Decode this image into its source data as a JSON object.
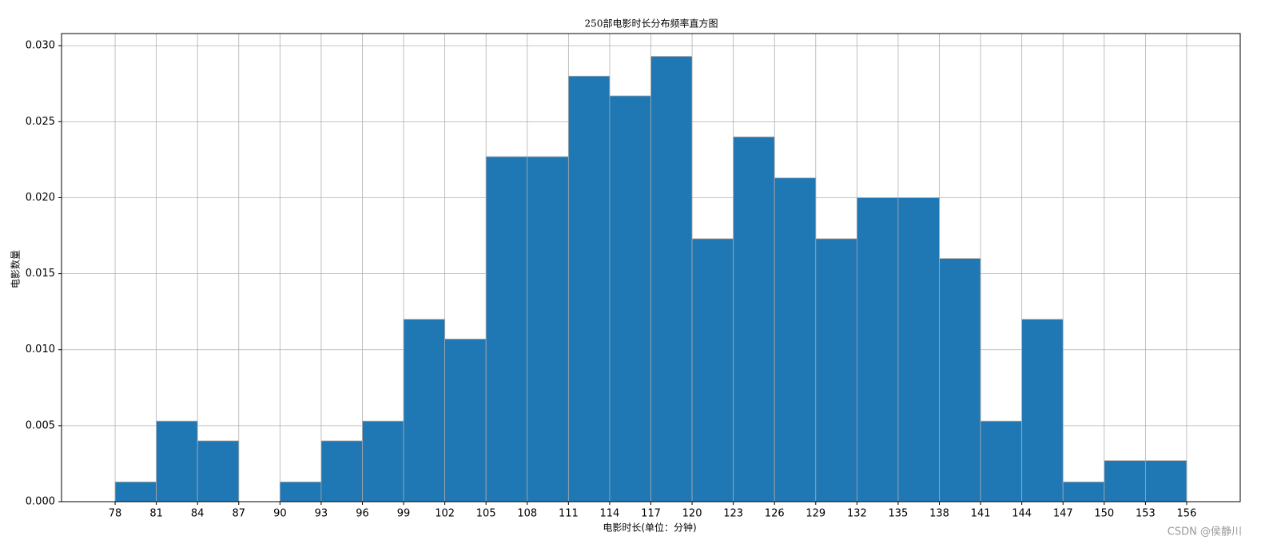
{
  "chart_data": {
    "type": "histogram",
    "title": "250部电影时长分布频率直方图",
    "xlabel": "电影时长(单位：分钟)",
    "ylabel": "电影数量",
    "bins": [
      78,
      81,
      84,
      87,
      90,
      93,
      96,
      99,
      102,
      105,
      108,
      111,
      114,
      117,
      120,
      123,
      126,
      129,
      132,
      135,
      138,
      141,
      144,
      147,
      150,
      153,
      156
    ],
    "values": [
      0.0013,
      0.0053,
      0.004,
      0,
      0.0013,
      0.004,
      0.0053,
      0.012,
      0.0107,
      0.0227,
      0.0227,
      0.028,
      0.0267,
      0.0293,
      0.0173,
      0.024,
      0.0213,
      0.0173,
      0.02,
      0.02,
      0.016,
      0.0053,
      0.012,
      0.0013,
      0.0027,
      0.0027
    ],
    "color": "#1f77b4",
    "edgecolor": "#aaaaaa",
    "xlim": [
      74.1,
      159.9
    ],
    "ylim": [
      0,
      0.0308
    ],
    "xticks": [
      78,
      81,
      84,
      87,
      90,
      93,
      96,
      99,
      102,
      105,
      108,
      111,
      114,
      117,
      120,
      123,
      126,
      129,
      132,
      135,
      138,
      141,
      144,
      147,
      150,
      153,
      156
    ],
    "yticks": [
      {
        "value": 0,
        "label": "0.000"
      },
      {
        "value": 0.005,
        "label": "0.005"
      },
      {
        "value": 0.01,
        "label": "0.010"
      },
      {
        "value": 0.015,
        "label": "0.015"
      },
      {
        "value": 0.02,
        "label": "0.020"
      },
      {
        "value": 0.025,
        "label": "0.025"
      },
      {
        "value": 0.03,
        "label": "0.030"
      }
    ],
    "grid": true,
    "watermark": "CSDN @侯静川"
  }
}
